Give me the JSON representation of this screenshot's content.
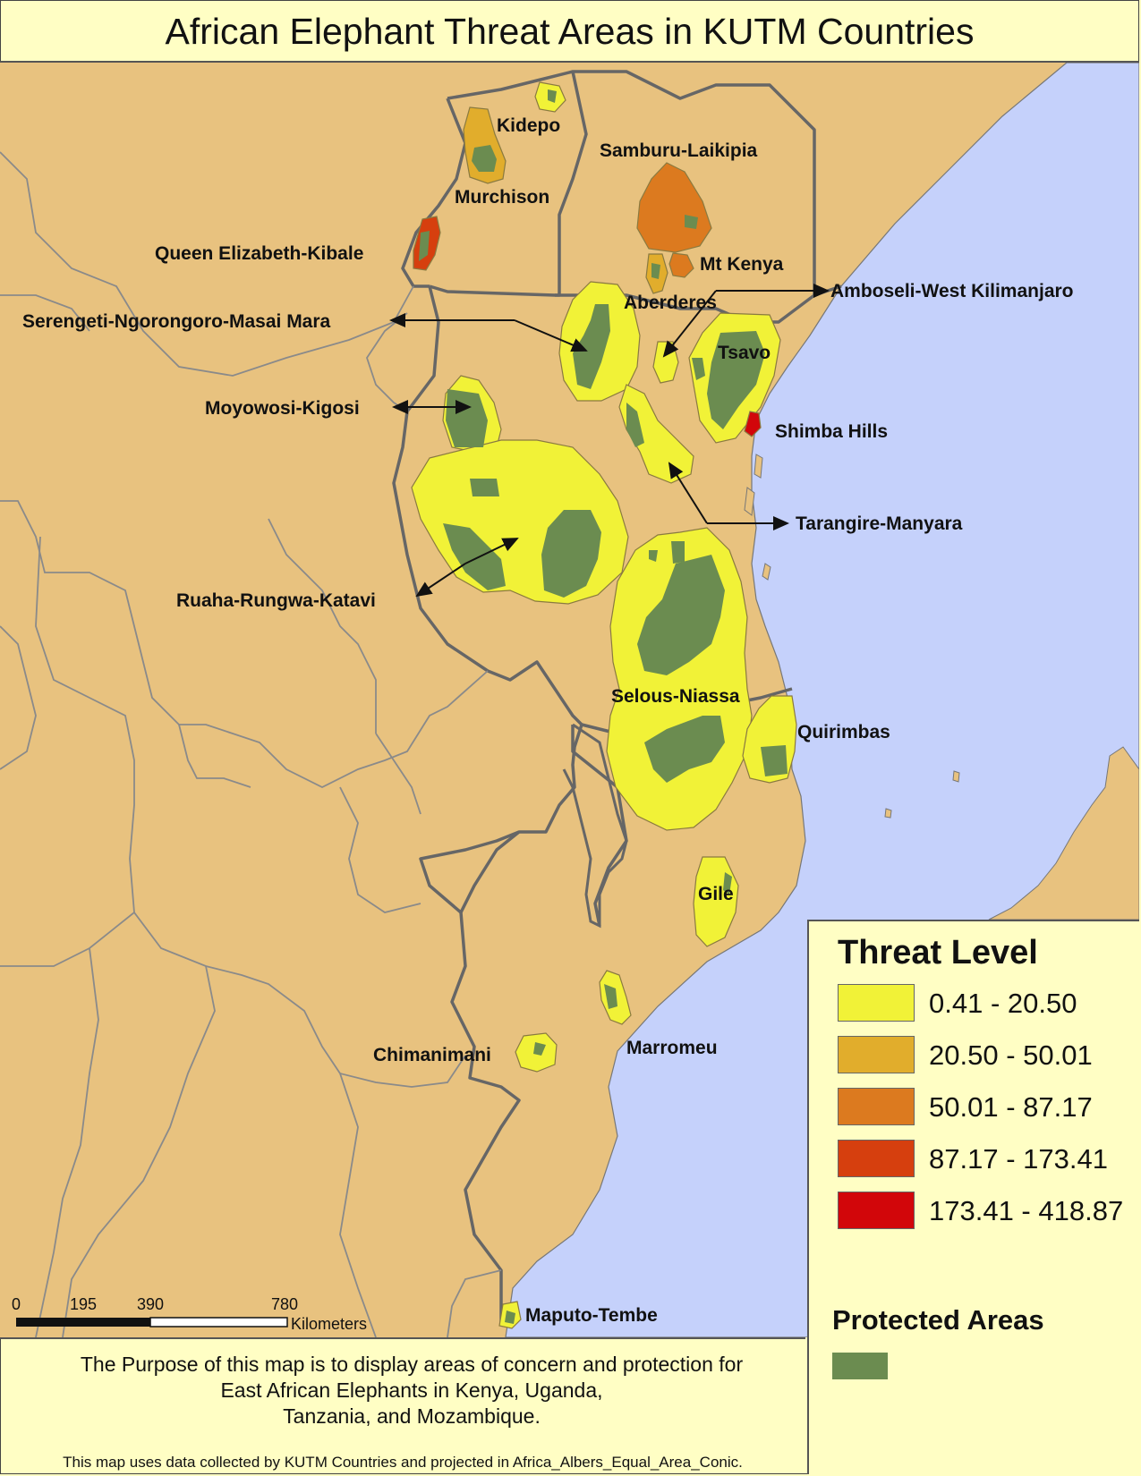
{
  "title": "African Elephant Threat Areas in KUTM Countries",
  "colors": {
    "land": "#e8c27f",
    "water": "#c5d1fb",
    "border_major": "#666666",
    "border_minor": "#8a8a8a",
    "protected": "#6b8c50",
    "threat_1": "#f1f237",
    "threat_2": "#e1ad2c",
    "threat_3": "#dc7a1f",
    "threat_4": "#d63f0e",
    "threat_5": "#d2060a"
  },
  "labels": {
    "kidepo": "Kidepo",
    "samburu": "Samburu-Laikipia",
    "murchison": "Murchison",
    "queen_elizabeth": "Queen Elizabeth-Kibale",
    "mt_kenya": "Mt Kenya",
    "amboseli": "Amboseli-West Kilimanjaro",
    "aberderes": "Aberderes",
    "serengeti": "Serengeti-Ngorongoro-Masai Mara",
    "tsavo": "Tsavo",
    "moyowosi": "Moyowosi-Kigosi",
    "shimba": "Shimba Hills",
    "tarangire": "Tarangire-Manyara",
    "ruaha": "Ruaha-Rungwa-Katavi",
    "selous": "Selous-Niassa",
    "quirimbas": "Quirimbas",
    "gile": "Gile",
    "marromeu": "Marromeu",
    "chimanimani": "Chimanimani",
    "maputo": "Maputo-Tembe"
  },
  "scale_bar": {
    "ticks": [
      "0",
      "195",
      "390",
      "780"
    ],
    "unit": "Kilometers"
  },
  "legend": {
    "title": "Threat Level",
    "classes": [
      {
        "label": "0.41 - 20.50",
        "color": "#f1f237"
      },
      {
        "label": "20.50 - 50.01",
        "color": "#e1ad2c"
      },
      {
        "label": "50.01 - 87.17",
        "color": "#dc7a1f"
      },
      {
        "label": "87.17 - 173.41",
        "color": "#d63f0e"
      },
      {
        "label": "173.41 - 418.87",
        "color": "#d2060a"
      }
    ],
    "protected_title": "Protected Areas"
  },
  "footer": {
    "purpose_lines": [
      "The Purpose of this map is to display areas of concern and protection for",
      "East African Elephants in Kenya, Uganda,",
      "Tanzania, and Mozambique."
    ],
    "credit": "This map uses data collected by KUTM Countries and projected in Africa_Albers_Equal_Area_Conic."
  }
}
